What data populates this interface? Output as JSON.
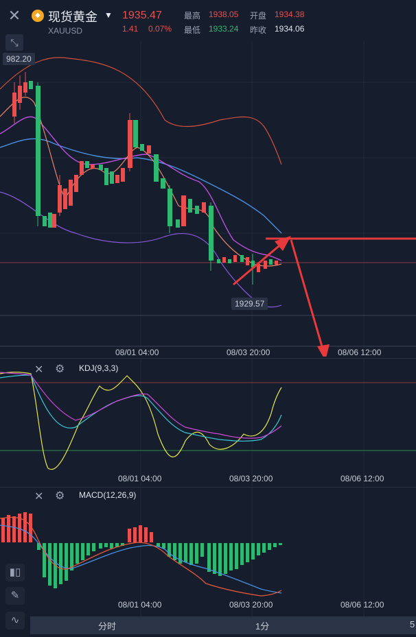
{
  "header": {
    "title": "现货黄金",
    "code": "XAUUSD",
    "price": "1935.47",
    "change": "1.41",
    "change_pct": "0.07%",
    "stats": {
      "high_label": "最高",
      "high_value": "1938.05",
      "open_label": "开盘",
      "open_value": "1934.38",
      "low_label": "最低",
      "low_value": "1933.24",
      "prev_close_label": "昨收",
      "prev_close_value": "1934.06"
    }
  },
  "main_chart": {
    "top_value_label": "982.20",
    "low_marker": "1929.57",
    "time_labels": [
      "08/01 04:00",
      "08/03 20:00",
      "08/06 12:00"
    ]
  },
  "kdj": {
    "label": "KDJ(9,3,3)",
    "time_labels": [
      "08/01 04:00",
      "08/03 20:00",
      "08/06 12:00"
    ]
  },
  "macd": {
    "label": "MACD(12,26,9)",
    "time_labels": [
      "08/01 04:00",
      "08/03 20:00",
      "08/06 12:00"
    ]
  },
  "bottom_tabs": [
    "分时",
    "1分",
    "5"
  ],
  "colors": {
    "up": "#e94f4f",
    "down": "#2eb872",
    "ma_short": "#f0a070",
    "ma_mid": "#c050e0",
    "ma_long": "#4a90e2",
    "arrow": "#e8393c"
  },
  "icons": {
    "close": "close-icon",
    "collapse": "collapse-icon",
    "settings": "settings-icon",
    "candle_tool": "candlestick-icon",
    "draw_tool": "pencil-icon",
    "indicator_tool": "indicator-icon"
  }
}
